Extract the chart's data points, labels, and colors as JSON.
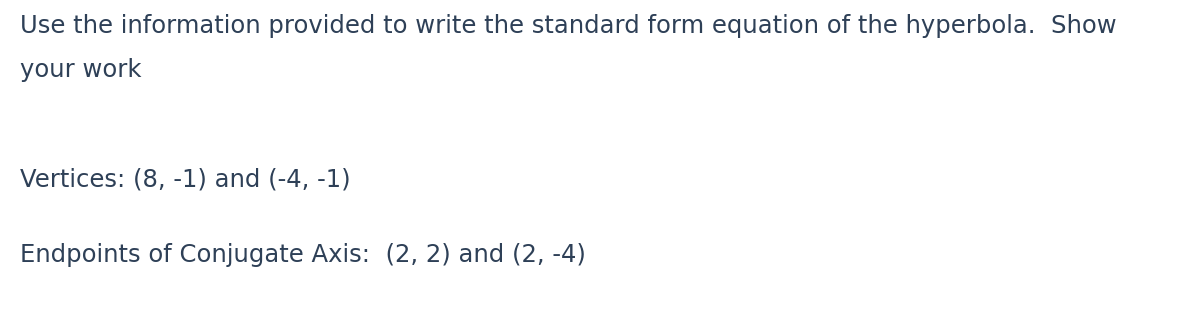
{
  "background_color": "#ffffff",
  "line1": "Use the information provided to write the standard form equation of the hyperbola.  Show",
  "line2": "your work",
  "line3": "Vertices: (8, -1) and (-4, -1)",
  "line4": "Endpoints of Conjugate Axis:  (2, 2) and (2, -4)",
  "font_size_main": 17.5,
  "font_color": "#2e4057",
  "font_family": "DejaVu Sans"
}
